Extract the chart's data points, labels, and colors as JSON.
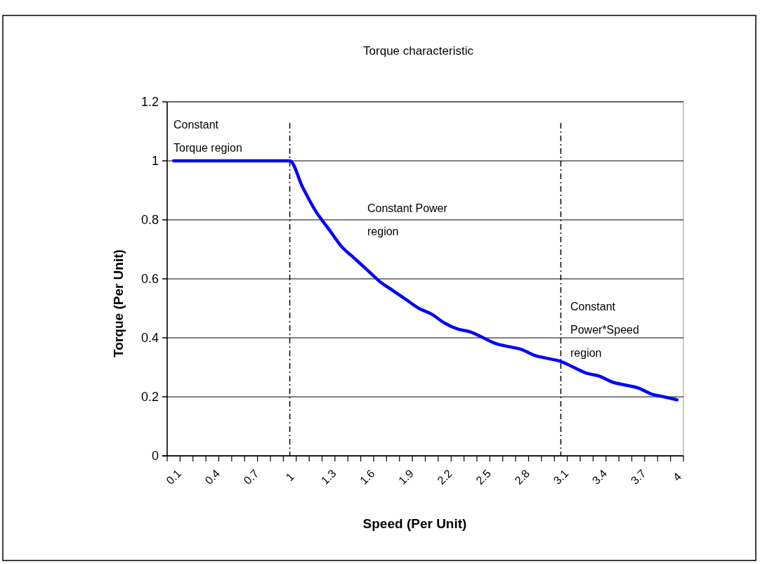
{
  "chart_data": {
    "type": "line",
    "title": "Torque characteristic",
    "xlabel": "Speed (Per Unit)",
    "ylabel": "Torque (Per Unit)",
    "categories": [
      "0.1",
      null,
      null,
      "0.4",
      null,
      null,
      "0.7",
      null,
      null,
      "1",
      null,
      null,
      "1.3",
      null,
      null,
      "1.6",
      null,
      null,
      "1.9",
      null,
      null,
      "2.2",
      null,
      null,
      "2.5",
      null,
      null,
      "2.8",
      null,
      null,
      "3.1",
      null,
      null,
      "3.4",
      null,
      null,
      "3.7",
      null,
      null,
      "4"
    ],
    "series": [
      {
        "color": "#0000ff",
        "values": [
          1,
          1,
          1,
          1,
          1,
          1,
          1,
          1,
          1,
          1,
          0.91,
          0.83,
          0.77,
          0.71,
          0.67,
          0.63,
          0.59,
          0.56,
          0.53,
          0.5,
          0.48,
          0.45,
          0.43,
          0.42,
          0.4,
          0.38,
          0.37,
          0.36,
          0.34,
          0.33,
          0.32,
          0.3,
          0.28,
          0.27,
          0.25,
          0.24,
          0.23,
          0.21,
          0.2,
          0.19
        ]
      }
    ],
    "ylim": [
      0,
      1.2
    ],
    "yticks": [
      0,
      0.2,
      0.4,
      0.6,
      0.8,
      1,
      1.2
    ],
    "grid": "y",
    "marker": "none",
    "line_style": "solid",
    "ref_lines": [
      {
        "axis": "x",
        "value": "1",
        "color": "#000000",
        "line_style": "dashed"
      },
      {
        "axis": "x",
        "value": "3.1",
        "color": "#000000",
        "line_style": "dashed"
      }
    ],
    "annotations": [
      "Constant\nTorque region",
      "Constant Power\nregion",
      "Constant\nPower*Speed\nregion"
    ]
  }
}
